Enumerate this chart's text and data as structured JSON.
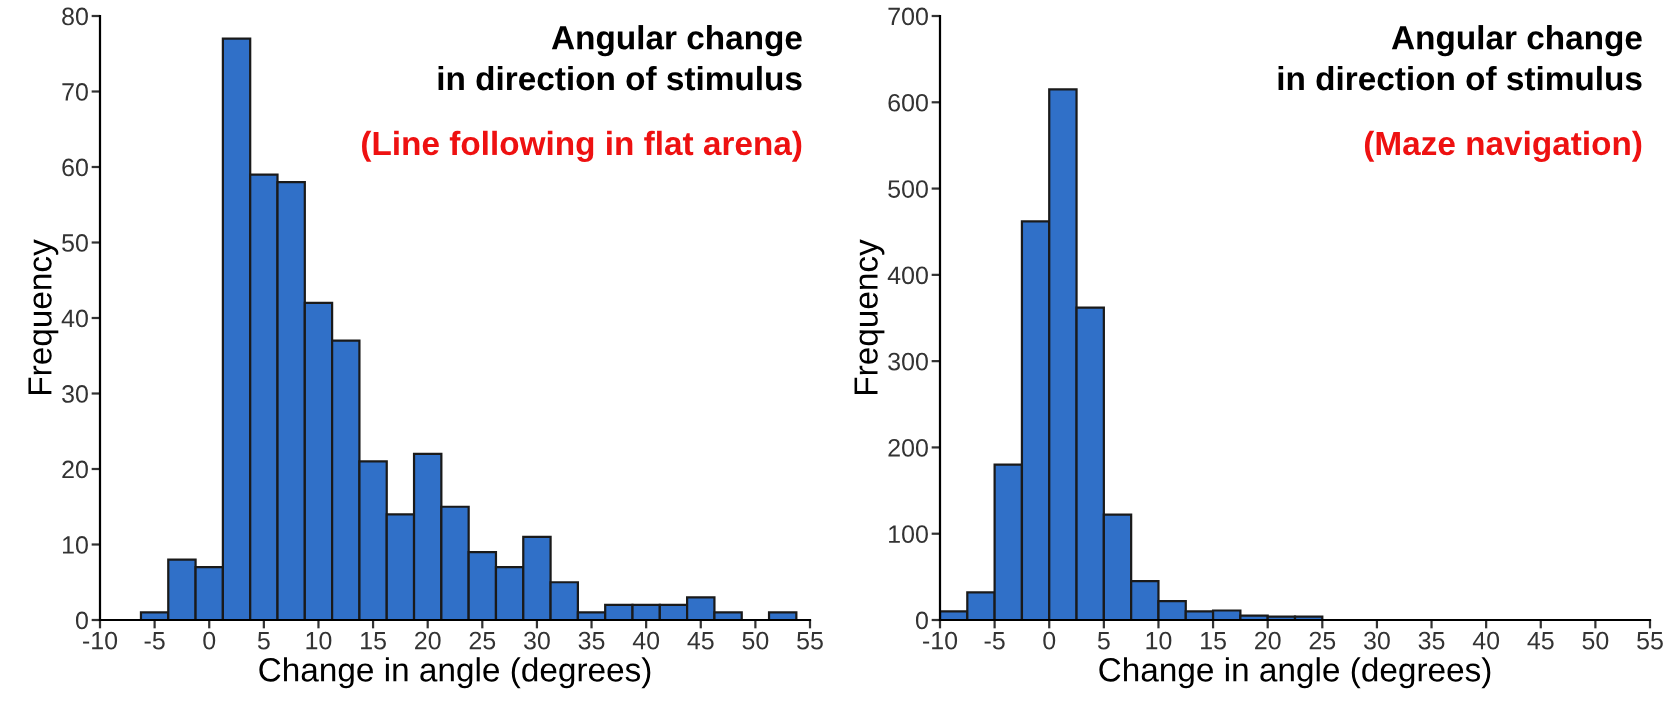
{
  "chart_data": [
    {
      "type": "histogram",
      "title": "Angular change\nin direction of stimulus",
      "subtitle": "(Line following in flat arena)",
      "xlabel": "Change in angle (degrees)",
      "ylabel": "Frequency",
      "color": "#3070c8",
      "bins": [
        -6.25,
        -3.75,
        -1.25,
        1.25,
        3.75,
        6.25,
        8.75,
        11.25,
        13.75,
        16.25,
        18.75,
        21.25,
        23.75,
        26.25,
        28.75,
        31.25,
        33.75,
        36.25,
        38.75,
        41.25,
        43.75,
        46.25,
        48.75,
        51.25,
        53.75
      ],
      "values": [
        1,
        8,
        7,
        77,
        59,
        58,
        42,
        37,
        21,
        14,
        22,
        15,
        9,
        7,
        11,
        5,
        1,
        2,
        2,
        2,
        3,
        1,
        0,
        1
      ],
      "xlim": [
        -10,
        55
      ],
      "xticks": [
        -10,
        -5,
        0,
        5,
        10,
        15,
        20,
        25,
        30,
        35,
        40,
        45,
        50,
        55
      ],
      "ylim": [
        0,
        80
      ],
      "yticks": [
        0,
        10,
        20,
        30,
        40,
        50,
        60,
        70,
        80
      ],
      "grid": false
    },
    {
      "type": "histogram",
      "title": "Angular change\nin direction of stimulus",
      "subtitle": "(Maze navigation)",
      "xlabel": "Change in angle (degrees)",
      "ylabel": "Frequency",
      "color": "#3070c8",
      "bins": [
        -10,
        -7.5,
        -5,
        -2.5,
        0,
        2.5,
        5,
        7.5,
        10,
        12.5,
        15,
        17.5,
        20,
        22.5,
        25,
        27.5,
        30
      ],
      "values": [
        10,
        32,
        180,
        462,
        615,
        362,
        122,
        45,
        22,
        10,
        11,
        5,
        4,
        4,
        null,
        null
      ],
      "xlim": [
        -10,
        55
      ],
      "xticks": [
        -10,
        -5,
        0,
        5,
        10,
        15,
        20,
        25,
        30,
        35,
        40,
        45,
        50,
        55
      ],
      "ylim": [
        0,
        700
      ],
      "yticks": [
        0,
        100,
        200,
        300,
        400,
        500,
        600,
        700
      ],
      "grid": false
    }
  ]
}
